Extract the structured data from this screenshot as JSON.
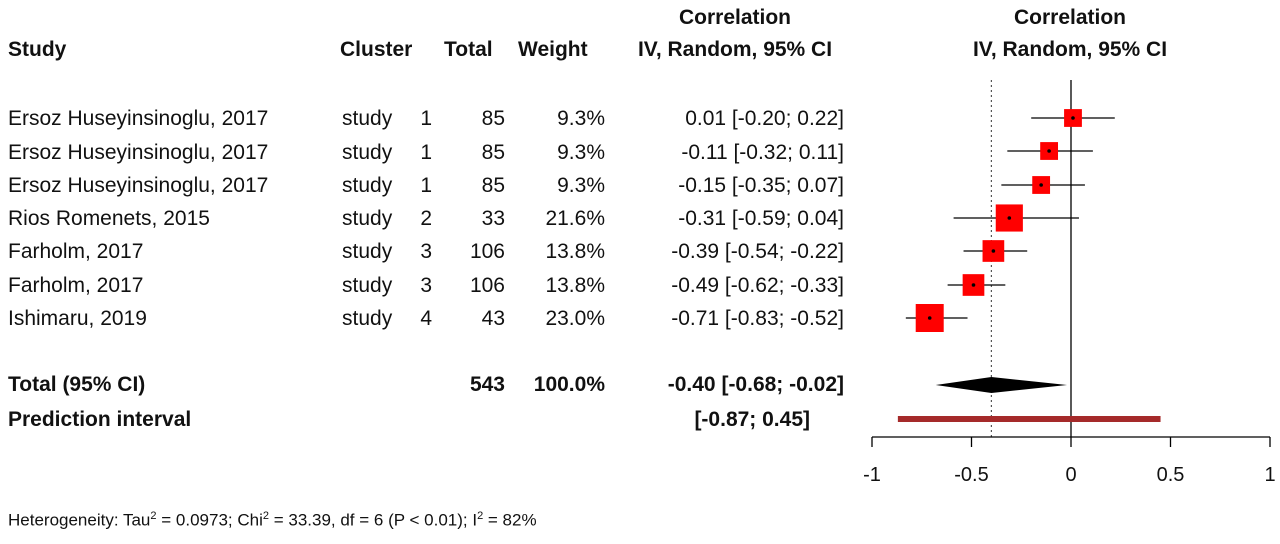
{
  "headers": {
    "study": "Study",
    "cluster": "Cluster",
    "total": "Total",
    "weight": "Weight",
    "ci_line1": "Correlation",
    "ci_line2": "IV, Random, 95% CI",
    "plot_line1": "Correlation",
    "plot_line2": "IV, Random, 95% CI"
  },
  "rows": [
    {
      "study": "Ersoz Huseyinsinoglu, 2017",
      "cluster": "study",
      "cluster_n": "1",
      "total": "85",
      "weight": "9.3%",
      "ci_text": "0.01 [-0.20;  0.22]"
    },
    {
      "study": "Ersoz Huseyinsinoglu, 2017",
      "cluster": "study",
      "cluster_n": "1",
      "total": "85",
      "weight": "9.3%",
      "ci_text": "-0.11 [-0.32;  0.11]"
    },
    {
      "study": "Ersoz Huseyinsinoglu, 2017",
      "cluster": "study",
      "cluster_n": "1",
      "total": "85",
      "weight": "9.3%",
      "ci_text": "-0.15 [-0.35;  0.07]"
    },
    {
      "study": "Rios Romenets, 2015",
      "cluster": "study",
      "cluster_n": "2",
      "total": "33",
      "weight": "21.6%",
      "ci_text": "-0.31 [-0.59;  0.04]"
    },
    {
      "study": "Farholm, 2017",
      "cluster": "study",
      "cluster_n": "3",
      "total": "106",
      "weight": "13.8%",
      "ci_text": "-0.39 [-0.54; -0.22]"
    },
    {
      "study": "Farholm, 2017",
      "cluster": "study",
      "cluster_n": "3",
      "total": "106",
      "weight": "13.8%",
      "ci_text": "-0.49 [-0.62; -0.33]"
    },
    {
      "study": "Ishimaru, 2019",
      "cluster": "study",
      "cluster_n": "4",
      "total": "43",
      "weight": "23.0%",
      "ci_text": "-0.71 [-0.83; -0.52]"
    }
  ],
  "total_row": {
    "label": "Total (95% CI)",
    "total": "543",
    "weight": "100.0%",
    "ci_text": "-0.40 [-0.68; -0.02]"
  },
  "prediction_row": {
    "label": "Prediction interval",
    "ci_text": "[-0.87;  0.45]"
  },
  "heterogeneity": {
    "prefix": "Heterogeneity: Tau",
    "tau_sup": "2",
    "tau_val": " = 0.0973; Chi",
    "chi_sup": "2",
    "chi_val": " = 33.39, df = 6 (P < 0.01); I",
    "i_sup": "2",
    "i_val": " = 82%"
  },
  "colors": {
    "square": "#ff0000",
    "diamond": "#000000",
    "prediction_bar": "#a52a2a",
    "line": "#000000"
  },
  "chart_data": {
    "type": "forest",
    "x_ticks": [
      -1,
      -0.5,
      0,
      0.5,
      1
    ],
    "x_tick_labels": [
      "-1",
      "-0.5",
      "0",
      "0.5",
      "1"
    ],
    "xlim": [
      -1,
      1
    ],
    "reference_line": 0,
    "pooled_line": -0.4,
    "studies": [
      {
        "est": 0.01,
        "lo": -0.2,
        "hi": 0.22,
        "weight": 9.3
      },
      {
        "est": -0.11,
        "lo": -0.32,
        "hi": 0.11,
        "weight": 9.3
      },
      {
        "est": -0.15,
        "lo": -0.35,
        "hi": 0.07,
        "weight": 9.3
      },
      {
        "est": -0.31,
        "lo": -0.59,
        "hi": 0.04,
        "weight": 21.6
      },
      {
        "est": -0.39,
        "lo": -0.54,
        "hi": -0.22,
        "weight": 13.8
      },
      {
        "est": -0.49,
        "lo": -0.62,
        "hi": -0.33,
        "weight": 13.8
      },
      {
        "est": -0.71,
        "lo": -0.83,
        "hi": -0.52,
        "weight": 23.0
      }
    ],
    "pooled": {
      "est": -0.4,
      "lo": -0.68,
      "hi": -0.02
    },
    "prediction_interval": {
      "lo": -0.87,
      "hi": 0.45
    }
  }
}
